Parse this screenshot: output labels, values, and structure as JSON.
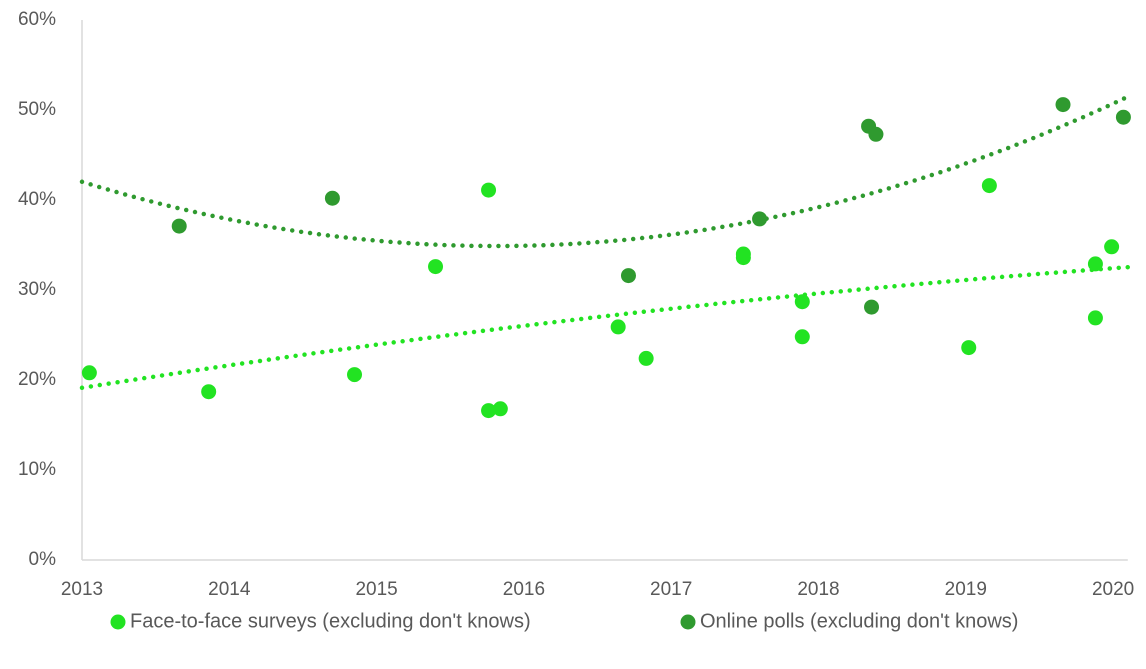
{
  "chart_data": {
    "type": "scatter",
    "series": [
      {
        "name": "Face-to-face surveys (excluding don't knows)",
        "color": "#22e322",
        "x": [
          2013.05,
          2013.86,
          2014.85,
          2015.4,
          2015.76,
          2015.76,
          2015.84,
          2016.64,
          2016.83,
          2017.49,
          2017.49,
          2017.89,
          2017.89,
          2019.02,
          2019.16,
          2019.88,
          2019.88,
          2019.99
        ],
        "values": [
          20.8,
          18.7,
          20.6,
          32.6,
          41.1,
          16.6,
          16.8,
          25.9,
          22.4,
          34.0,
          33.6,
          28.7,
          24.8,
          23.6,
          41.6,
          32.9,
          26.9,
          34.8
        ]
      },
      {
        "name": "Online polls (excluding don't knows)",
        "color": "#2f9a2f",
        "x": [
          2013.66,
          2014.7,
          2016.71,
          2017.6,
          2018.34,
          2018.39,
          2018.36,
          2019.66,
          2020.07
        ],
        "values": [
          37.1,
          40.2,
          31.6,
          37.9,
          48.2,
          47.3,
          28.1,
          50.6,
          49.2
        ]
      }
    ],
    "trendline": "polynomial",
    "trendline_order": 2,
    "xlim": [
      2013,
      2020.1
    ],
    "xticks": [
      2013,
      2014,
      2015,
      2016,
      2017,
      2018,
      2019,
      2020
    ],
    "ylim": [
      0,
      60
    ],
    "yticks": [
      {
        "value": 0,
        "label": "0%"
      },
      {
        "value": 10,
        "label": "10%"
      },
      {
        "value": 20,
        "label": "20%"
      },
      {
        "value": 30,
        "label": "30%"
      },
      {
        "value": 40,
        "label": "40%"
      },
      {
        "value": 50,
        "label": "50%"
      },
      {
        "value": 60,
        "label": "60%"
      }
    ],
    "grid": false,
    "legend": "bottom"
  }
}
